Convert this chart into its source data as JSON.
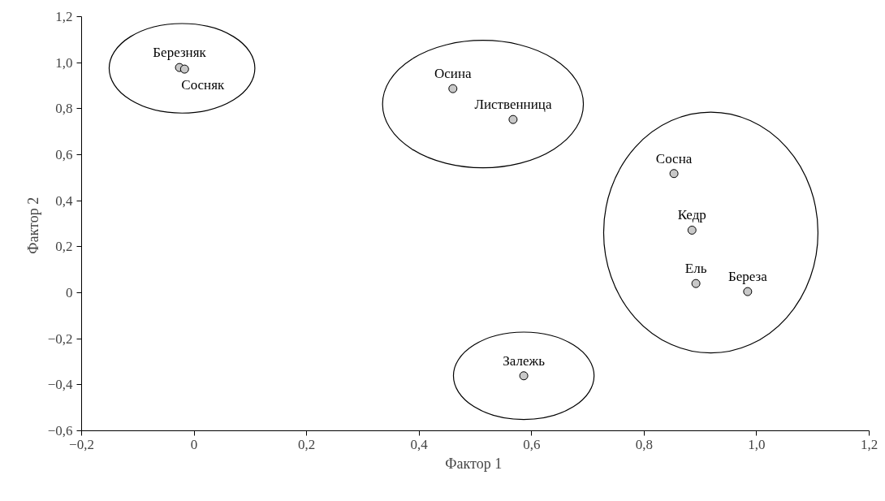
{
  "chart_data": {
    "type": "scatter",
    "xlabel": "Фактор  1",
    "ylabel": "Фактор  2",
    "xlim": [
      -0.2,
      1.2
    ],
    "ylim": [
      -0.6,
      1.2
    ],
    "xticks": [
      {
        "value": -0.2,
        "label": "−0,2"
      },
      0,
      {
        "value": 0.2,
        "label": "0,2"
      },
      {
        "value": 0.4,
        "label": "0,4"
      },
      {
        "value": 0.6,
        "label": "0,6"
      },
      {
        "value": 0.8,
        "label": "0,8"
      },
      {
        "value": 1.0,
        "label": "1,0"
      },
      {
        "value": 1.2,
        "label": "1,2"
      }
    ],
    "yticks": [
      {
        "value": -0.6,
        "label": "−0,6"
      },
      {
        "value": -0.4,
        "label": "−0,4"
      },
      {
        "value": -0.2,
        "label": "−0,2"
      },
      0,
      {
        "value": 0.2,
        "label": "0,2"
      },
      {
        "value": 0.4,
        "label": "0,4"
      },
      {
        "value": 0.6,
        "label": "0,6"
      },
      {
        "value": 0.8,
        "label": "0,8"
      },
      {
        "value": 1.0,
        "label": "1,0"
      },
      {
        "value": 1.2,
        "label": "1,2"
      }
    ],
    "grid": false,
    "marker": "circle",
    "series": [
      {
        "color": "#c8c8c8",
        "x": [
          -0.026,
          -0.017
        ],
        "values": [
          0.979,
          0.972
        ]
      },
      {
        "color": "#c8c8c8",
        "x": [
          0.46,
          0.567
        ],
        "values": [
          0.887,
          0.753
        ]
      },
      {
        "color": "#c8c8c8",
        "x": [
          0.853,
          0.885,
          0.892,
          0.984
        ],
        "values": [
          0.518,
          0.272,
          0.04,
          0.005
        ]
      },
      {
        "color": "#c8c8c8",
        "x": [
          0.586
        ],
        "values": [
          -0.361
        ]
      }
    ],
    "annotations": [
      {
        "text": "Березняк",
        "x": -0.026,
        "y": 0.979
      },
      {
        "text": "Сосняк",
        "x": -0.017,
        "y": 0.972
      },
      {
        "text": "Осина",
        "x": 0.46,
        "y": 0.887
      },
      {
        "text": "Лиственница",
        "x": 0.567,
        "y": 0.753
      },
      {
        "text": "Сосна",
        "x": 0.853,
        "y": 0.518
      },
      {
        "text": "Кедр",
        "x": 0.885,
        "y": 0.272
      },
      {
        "text": "Ель",
        "x": 0.892,
        "y": 0.04
      },
      {
        "text": "Береза",
        "x": 0.984,
        "y": 0.005
      },
      {
        "text": "Залежь",
        "x": 0.586,
        "y": -0.361
      }
    ]
  }
}
